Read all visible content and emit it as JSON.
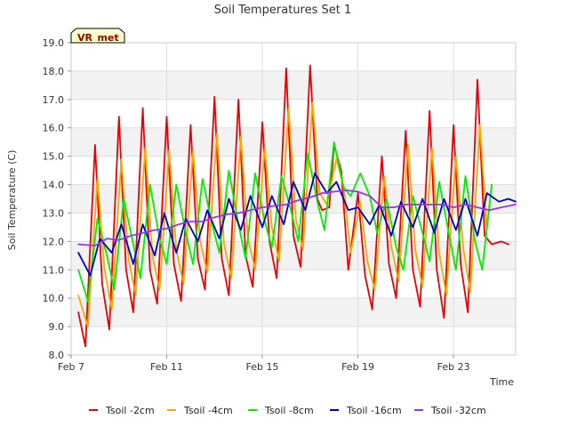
{
  "chart_data": {
    "type": "line",
    "title": "Soil Temperatures Set 1",
    "xlabel": "Time",
    "ylabel": "Soil Temperature (C)",
    "annotation": "VR_met",
    "x_unit": "day",
    "xlim": [
      7,
      25.6
    ],
    "ylim": [
      8.0,
      19.0
    ],
    "x_ticks": [
      {
        "value": 7,
        "label": "Feb 7"
      },
      {
        "value": 11,
        "label": "Feb 11"
      },
      {
        "value": 15,
        "label": "Feb 15"
      },
      {
        "value": 19,
        "label": "Feb 19"
      },
      {
        "value": 23,
        "label": "Feb 23"
      }
    ],
    "y_ticks": [
      {
        "value": 8,
        "label": "8.0"
      },
      {
        "value": 9,
        "label": "9.0"
      },
      {
        "value": 10,
        "label": "10.0"
      },
      {
        "value": 11,
        "label": "11.0"
      },
      {
        "value": 12,
        "label": "12.0"
      },
      {
        "value": 13,
        "label": "13.0"
      },
      {
        "value": 14,
        "label": "14.0"
      },
      {
        "value": 15,
        "label": "15.0"
      },
      {
        "value": 16,
        "label": "16.0"
      },
      {
        "value": 17,
        "label": "17.0"
      },
      {
        "value": 18,
        "label": "18.0"
      },
      {
        "value": 19,
        "label": "19.0"
      }
    ],
    "grid": true,
    "legend_position": "bottom",
    "series": [
      {
        "name": "Tsoil -2cm",
        "color": "#ee0000",
        "x": [
          7.3,
          7.6,
          8.0,
          8.3,
          8.6,
          9.0,
          9.3,
          9.6,
          10.0,
          10.3,
          10.6,
          11.0,
          11.3,
          11.6,
          12.0,
          12.3,
          12.6,
          13.0,
          13.3,
          13.6,
          14.0,
          14.3,
          14.6,
          15.0,
          15.3,
          15.6,
          16.0,
          16.3,
          16.6,
          17.0,
          17.3,
          17.5,
          17.8,
          18.0,
          18.3,
          18.6,
          19.0,
          19.3,
          19.6,
          20.0,
          20.3,
          20.6,
          21.0,
          21.3,
          21.6,
          22.0,
          22.3,
          22.6,
          23.0,
          23.3,
          23.6,
          24.0,
          24.3,
          24.6,
          25.0,
          25.3
        ],
        "values": [
          9.5,
          8.3,
          15.4,
          10.5,
          8.9,
          16.4,
          11.0,
          9.5,
          16.7,
          11.0,
          9.8,
          16.4,
          11.2,
          9.9,
          16.1,
          11.4,
          10.3,
          17.1,
          11.4,
          10.1,
          17.0,
          11.5,
          10.4,
          16.2,
          12.0,
          10.7,
          18.1,
          12.2,
          11.1,
          18.2,
          13.5,
          13.1,
          13.2,
          15.4,
          14.5,
          11.0,
          13.7,
          10.8,
          9.6,
          15.0,
          11.2,
          10.0,
          15.9,
          11.0,
          9.7,
          16.6,
          11.0,
          9.3,
          16.1,
          11.2,
          9.5,
          17.7,
          12.2,
          11.9,
          12.0,
          11.9
        ]
      },
      {
        "name": "Tsoil -4cm",
        "color": "#ffa500",
        "x": [
          7.3,
          7.7,
          8.1,
          8.4,
          8.7,
          9.1,
          9.4,
          9.7,
          10.1,
          10.4,
          10.7,
          11.1,
          11.4,
          11.7,
          12.1,
          12.4,
          12.7,
          13.1,
          13.4,
          13.7,
          14.1,
          14.4,
          14.7,
          15.1,
          15.4,
          15.7,
          16.1,
          16.4,
          16.7,
          17.1,
          17.4,
          17.7,
          18.1,
          18.4,
          18.7,
          19.1,
          19.4,
          19.7,
          20.1,
          20.4,
          20.7,
          21.1,
          21.4,
          21.7,
          22.1,
          22.4,
          22.7,
          23.1,
          23.4,
          23.7,
          24.1,
          24.4
        ],
        "values": [
          10.1,
          9.0,
          14.2,
          11.0,
          9.6,
          14.9,
          11.4,
          10.1,
          15.3,
          11.5,
          10.3,
          15.2,
          11.7,
          10.5,
          15.2,
          12.0,
          10.9,
          15.8,
          11.9,
          10.7,
          15.7,
          12.1,
          11.0,
          15.3,
          12.5,
          11.3,
          16.7,
          12.8,
          11.7,
          16.9,
          13.7,
          13.3,
          14.9,
          13.9,
          11.6,
          13.4,
          11.3,
          10.3,
          14.3,
          11.8,
          10.6,
          15.4,
          11.7,
          10.4,
          15.3,
          11.6,
          10.1,
          15.0,
          11.8,
          10.2,
          16.1,
          12.4
        ]
      },
      {
        "name": "Tsoil -8cm",
        "color": "#00ee00",
        "x": [
          7.3,
          7.7,
          8.1,
          8.5,
          8.8,
          9.2,
          9.6,
          9.9,
          10.3,
          10.7,
          11.0,
          11.4,
          11.8,
          12.1,
          12.5,
          12.9,
          13.2,
          13.6,
          14.0,
          14.3,
          14.7,
          15.1,
          15.4,
          15.8,
          16.2,
          16.5,
          16.9,
          17.3,
          17.6,
          18.0,
          18.4,
          18.7,
          19.1,
          19.5,
          19.8,
          20.2,
          20.6,
          20.9,
          21.3,
          21.7,
          22.0,
          22.4,
          22.8,
          23.1,
          23.5,
          23.9,
          24.2,
          24.6
        ],
        "values": [
          11.0,
          9.9,
          12.8,
          11.5,
          10.3,
          13.5,
          11.9,
          10.7,
          14.0,
          12.1,
          11.2,
          14.0,
          12.3,
          11.2,
          14.2,
          12.6,
          11.6,
          14.5,
          12.6,
          11.4,
          14.4,
          12.7,
          11.8,
          14.3,
          13.1,
          12.0,
          15.1,
          13.4,
          12.4,
          15.5,
          13.9,
          13.6,
          14.4,
          13.6,
          12.3,
          13.5,
          11.8,
          11.0,
          13.6,
          12.3,
          11.3,
          14.1,
          12.3,
          11.0,
          14.3,
          12.0,
          11.0,
          14.0
        ]
      },
      {
        "name": "Tsoil -16cm",
        "color": "#0000cc",
        "x": [
          7.3,
          7.8,
          8.2,
          8.7,
          9.1,
          9.6,
          10.0,
          10.5,
          10.9,
          11.4,
          11.8,
          12.3,
          12.7,
          13.2,
          13.6,
          14.1,
          14.5,
          15.0,
          15.4,
          15.9,
          16.3,
          16.8,
          17.2,
          17.7,
          18.1,
          18.6,
          19.0,
          19.5,
          19.9,
          20.4,
          20.8,
          21.3,
          21.7,
          22.2,
          22.6,
          23.1,
          23.5,
          24.0,
          24.4,
          24.9,
          25.3,
          25.6
        ],
        "values": [
          11.6,
          10.8,
          12.1,
          11.6,
          12.6,
          11.2,
          12.6,
          11.5,
          13.0,
          11.6,
          12.8,
          12.0,
          13.1,
          12.1,
          13.5,
          12.4,
          13.6,
          12.5,
          13.6,
          12.6,
          14.1,
          13.1,
          14.4,
          13.7,
          14.1,
          13.1,
          13.2,
          12.6,
          13.3,
          12.2,
          13.4,
          12.5,
          13.5,
          12.3,
          13.5,
          12.4,
          13.5,
          12.2,
          13.7,
          13.4,
          13.5,
          13.4
        ]
      },
      {
        "name": "Tsoil -32cm",
        "color": "#9933ee",
        "x": [
          7.3,
          8.0,
          8.5,
          9.0,
          9.5,
          10.0,
          10.5,
          11.0,
          11.5,
          12.0,
          12.5,
          13.0,
          13.5,
          14.0,
          14.5,
          15.0,
          15.5,
          16.0,
          16.5,
          17.0,
          17.5,
          18.0,
          18.5,
          19.0,
          19.5,
          20.0,
          20.5,
          21.0,
          21.5,
          22.0,
          22.5,
          23.0,
          23.5,
          24.0,
          24.5,
          25.0,
          25.6
        ],
        "values": [
          11.9,
          11.85,
          12.1,
          12.05,
          12.2,
          12.3,
          12.4,
          12.45,
          12.6,
          12.7,
          12.7,
          12.85,
          12.95,
          13.0,
          13.1,
          13.2,
          13.25,
          13.3,
          13.45,
          13.55,
          13.7,
          13.75,
          13.8,
          13.75,
          13.6,
          13.2,
          13.2,
          13.3,
          13.3,
          13.3,
          13.3,
          13.2,
          13.3,
          13.2,
          13.1,
          13.2,
          13.3
        ]
      }
    ]
  }
}
